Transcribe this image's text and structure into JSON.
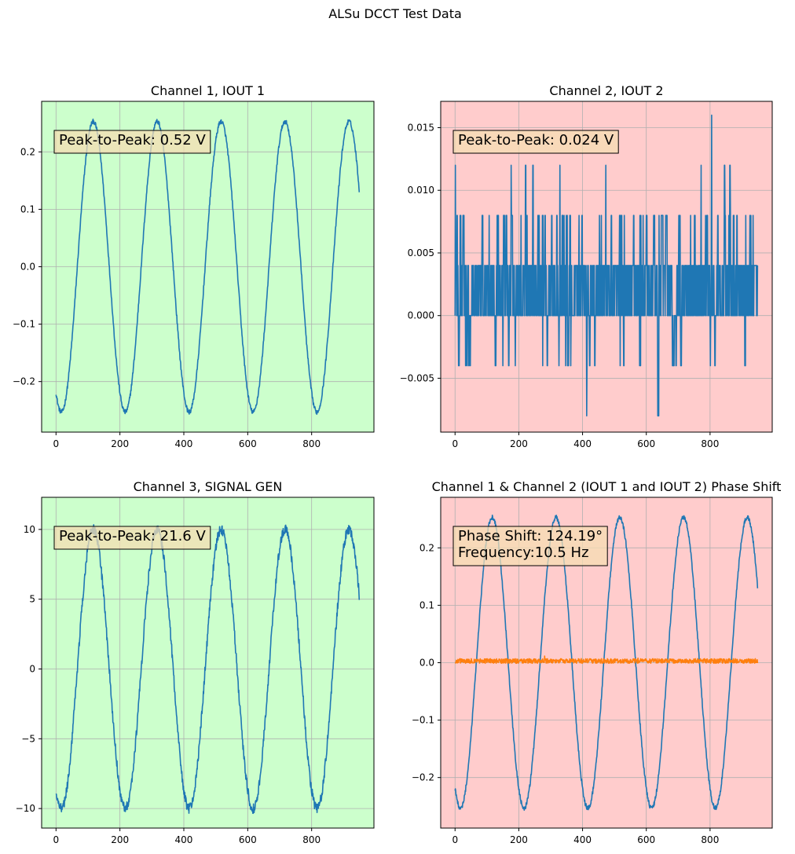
{
  "figure": {
    "suptitle": "ALSu DCCT Test Data"
  },
  "colors": {
    "ok_bg": "#ccffcc",
    "bad_bg": "#ffcccc",
    "series_blue": "#1f77b4",
    "series_orange": "#ff7f0e",
    "annotation_bg": "#f5deb3",
    "grid": "#b0b0b0"
  },
  "chart_data": [
    {
      "type": "line",
      "title": "Channel 1, IOUT 1",
      "status": "ok",
      "xlim": [
        -45,
        995
      ],
      "ylim": [
        -0.288,
        0.288
      ],
      "xticks": [
        0,
        200,
        400,
        600,
        800
      ],
      "yticks": [
        -0.2,
        -0.1,
        0.0,
        0.1,
        0.2
      ],
      "ytick_labels": [
        "−0.2",
        "−0.1",
        "0.0",
        "0.1",
        "0.2"
      ],
      "annotation": "Peak-to-Peak: 0.52 V",
      "series": [
        {
          "name": "IOUT 1",
          "color": "#1f77b4",
          "kind": "sine",
          "n": 950,
          "amplitude": 0.253,
          "period": 200,
          "phase_deg": 240,
          "offset": 0.0,
          "noise": 0.004
        }
      ]
    },
    {
      "type": "line",
      "title": "Channel 2, IOUT 2",
      "status": "bad",
      "xlim": [
        -45,
        995
      ],
      "ylim": [
        -0.0093,
        0.0171
      ],
      "xticks": [
        0,
        200,
        400,
        600,
        800
      ],
      "yticks": [
        -0.005,
        0.0,
        0.005,
        0.01,
        0.015
      ],
      "ytick_labels": [
        "−0.005",
        "0.000",
        "0.005",
        "0.010",
        "0.015"
      ],
      "annotation": "Peak-to-Peak: 0.024 V",
      "series": [
        {
          "name": "IOUT 2",
          "color": "#1f77b4",
          "kind": "quantized_noise",
          "n": 950,
          "levels": [
            -0.008,
            -0.004,
            0.0,
            0.004,
            0.008,
            0.012,
            0.016
          ]
        }
      ]
    },
    {
      "type": "line",
      "title": "Channel 3, SIGNAL GEN",
      "status": "ok",
      "xlim": [
        -45,
        995
      ],
      "ylim": [
        -11.4,
        12.3
      ],
      "xticks": [
        0,
        200,
        400,
        600,
        800
      ],
      "yticks": [
        -10,
        -5,
        0,
        5,
        10
      ],
      "ytick_labels": [
        "−10",
        "−5",
        "0",
        "5",
        "10"
      ],
      "annotation": "Peak-to-Peak: 21.6 V",
      "series": [
        {
          "name": "SIGNAL GEN",
          "color": "#1f77b4",
          "kind": "sine",
          "n": 950,
          "amplitude": 10.0,
          "period": 200,
          "phase_deg": 240,
          "offset": 0.0,
          "noise": 0.35
        }
      ]
    },
    {
      "type": "line",
      "title": "Channel 1 & Channel 2 (IOUT 1 and IOUT 2) Phase Shift",
      "status": "bad",
      "xlim": [
        -45,
        995
      ],
      "ylim": [
        -0.288,
        0.288
      ],
      "xticks": [
        0,
        200,
        400,
        600,
        800
      ],
      "yticks": [
        -0.2,
        -0.1,
        0.0,
        0.1,
        0.2
      ],
      "ytick_labels": [
        "−0.2",
        "−0.1",
        "0.0",
        "0.1",
        "0.2"
      ],
      "annotation": "Phase Shift: 124.19°\nFrequency:10.5 Hz",
      "series": [
        {
          "name": "IOUT 1",
          "color": "#1f77b4",
          "kind": "sine",
          "n": 950,
          "amplitude": 0.253,
          "period": 200,
          "phase_deg": 240,
          "offset": 0.0,
          "noise": 0.004
        },
        {
          "name": "IOUT 2",
          "color": "#ff7f0e",
          "kind": "small_noise",
          "n": 950,
          "center": 0.003,
          "noise": 0.004
        }
      ]
    }
  ]
}
